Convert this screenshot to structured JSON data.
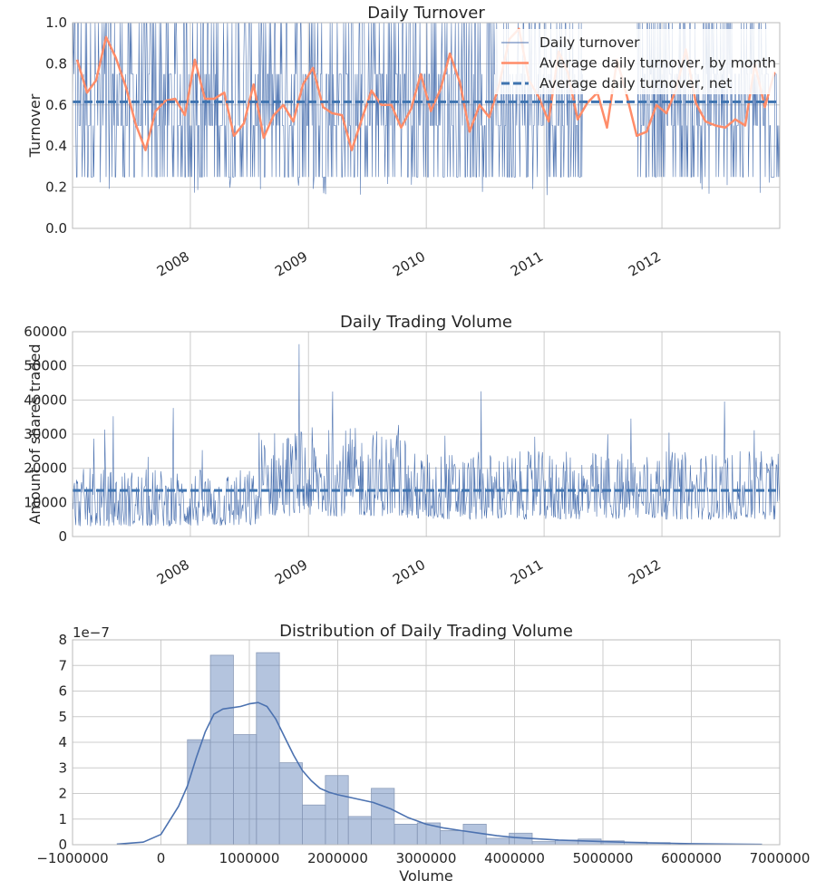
{
  "chart_data": [
    {
      "type": "line",
      "title": "Daily Turnover",
      "xlabel": "",
      "ylabel": "Turnover",
      "xlim": [
        "2007-01-01",
        "2012-12-31"
      ],
      "ylim": [
        0,
        1.0
      ],
      "x_ticks": [
        "2008",
        "2009",
        "2010",
        "2011",
        "2012"
      ],
      "y_ticks": [
        "0.0",
        "0.2",
        "0.4",
        "0.6",
        "0.8",
        "1.0"
      ],
      "grid": true,
      "legend_position": "top-right",
      "series": [
        {
          "name": "Daily turnover",
          "kind": "daily",
          "color": "#4c72b0",
          "value_range": [
            0.16,
            1.0
          ],
          "typical_levels": [
            0.25,
            0.5,
            0.75,
            1.0
          ],
          "gap": [
            "2011-05-01",
            "2011-10-15"
          ]
        },
        {
          "name": "Average daily turnover, by month",
          "kind": "monthly",
          "color": "#ff8c69",
          "x": [
            "2007-01-15",
            "2007-02-15",
            "2007-03-15",
            "2007-04-15",
            "2007-05-15",
            "2007-06-15",
            "2007-07-15",
            "2007-08-15",
            "2007-09-15",
            "2007-10-15",
            "2007-11-15",
            "2007-12-15",
            "2008-01-15",
            "2008-02-15",
            "2008-03-15",
            "2008-04-15",
            "2008-05-15",
            "2008-06-15",
            "2008-07-15",
            "2008-08-15",
            "2008-09-15",
            "2008-10-15",
            "2008-11-15",
            "2008-12-15",
            "2009-01-15",
            "2009-02-15",
            "2009-03-15",
            "2009-04-15",
            "2009-05-15",
            "2009-06-15",
            "2009-07-15",
            "2009-08-15",
            "2009-09-15",
            "2009-10-15",
            "2009-11-15",
            "2009-12-15",
            "2010-01-15",
            "2010-02-15",
            "2010-03-15",
            "2010-04-15",
            "2010-05-15",
            "2010-06-15",
            "2010-07-15",
            "2010-08-15",
            "2010-09-15",
            "2010-10-15",
            "2010-11-15",
            "2010-12-15",
            "2011-01-15",
            "2011-02-15",
            "2011-03-15",
            "2011-04-15",
            "2011-05-15",
            "2011-06-15",
            "2011-07-15",
            "2011-08-15",
            "2011-09-15",
            "2011-10-15",
            "2011-11-15",
            "2011-12-15",
            "2012-01-15",
            "2012-02-15",
            "2012-03-15",
            "2012-04-15",
            "2012-05-15",
            "2012-06-15",
            "2012-07-15",
            "2012-08-15",
            "2012-09-15",
            "2012-10-15",
            "2012-11-15",
            "2012-12-15"
          ],
          "values": [
            0.82,
            0.66,
            0.72,
            0.93,
            0.83,
            0.69,
            0.51,
            0.38,
            0.57,
            0.62,
            0.63,
            0.55,
            0.82,
            0.63,
            0.63,
            0.66,
            0.45,
            0.51,
            0.7,
            0.44,
            0.55,
            0.6,
            0.52,
            0.7,
            0.78,
            0.59,
            0.56,
            0.55,
            0.38,
            0.53,
            0.67,
            0.6,
            0.6,
            0.49,
            0.58,
            0.75,
            0.57,
            0.68,
            0.85,
            0.71,
            0.47,
            0.6,
            0.54,
            0.7,
            0.92,
            0.97,
            0.72,
            0.64,
            0.52,
            0.86,
            0.76,
            0.53,
            0.61,
            0.66,
            0.49,
            0.82,
            0.64,
            0.45,
            0.47,
            0.6,
            0.56,
            0.68,
            0.87,
            0.61,
            0.52,
            0.5,
            0.49,
            0.53,
            0.5,
            0.8,
            0.59,
            0.76
          ]
        },
        {
          "name": "Average daily turnover, net",
          "kind": "hline",
          "color": "#3f74b0",
          "value": 0.615
        }
      ]
    },
    {
      "type": "line",
      "title": "Daily Trading Volume",
      "xlabel": "",
      "ylabel": "Amount of shares traded",
      "xlim": [
        "2007-01-01",
        "2012-12-31"
      ],
      "ylim": [
        0,
        60000
      ],
      "x_ticks": [
        "2008",
        "2009",
        "2010",
        "2011",
        "2012"
      ],
      "y_ticks": [
        "0",
        "10000",
        "20000",
        "30000",
        "40000",
        "50000",
        "60000"
      ],
      "grid": true,
      "series": [
        {
          "kind": "daily",
          "color": "#4c72b0",
          "value_range": [
            3000,
            57000
          ],
          "regimes": [
            {
              "from": "2007-01-01",
              "to": "2008-07-31",
              "typical": [
                3000,
                20000
              ],
              "peak": 41000
            },
            {
              "from": "2008-08-01",
              "to": "2009-10-31",
              "typical": [
                6000,
                32000
              ],
              "peak": 57000
            },
            {
              "from": "2009-11-01",
              "to": "2012-12-31",
              "typical": [
                5000,
                25000
              ],
              "peak": 51000
            }
          ]
        },
        {
          "kind": "hline",
          "color": "#3f74b0",
          "value": 13500
        }
      ]
    },
    {
      "type": "bar",
      "title": "Distribution of Daily Trading Volume",
      "xlabel": "Volume",
      "ylabel": "",
      "y_scale_label": "1e−7",
      "xlim": [
        -1000000,
        7000000
      ],
      "ylim": [
        0,
        8
      ],
      "x_ticks": [
        "−1000000",
        "0",
        "1000000",
        "2000000",
        "3000000",
        "4000000",
        "5000000",
        "6000000",
        "7000000"
      ],
      "y_ticks": [
        "0",
        "1",
        "2",
        "3",
        "4",
        "5",
        "6",
        "7",
        "8"
      ],
      "grid": true,
      "bar_color": "#4c72b0",
      "bins": [
        {
          "start": 300000,
          "end": 560000,
          "density": 4.1
        },
        {
          "start": 560000,
          "end": 820000,
          "density": 7.4
        },
        {
          "start": 820000,
          "end": 1080000,
          "density": 4.3
        },
        {
          "start": 1080000,
          "end": 1340000,
          "density": 7.5
        },
        {
          "start": 1340000,
          "end": 1600000,
          "density": 3.2
        },
        {
          "start": 1600000,
          "end": 1860000,
          "density": 1.55
        },
        {
          "start": 1860000,
          "end": 2120000,
          "density": 2.7
        },
        {
          "start": 2120000,
          "end": 2380000,
          "density": 1.1
        },
        {
          "start": 2380000,
          "end": 2640000,
          "density": 2.2
        },
        {
          "start": 2640000,
          "end": 2900000,
          "density": 0.8
        },
        {
          "start": 2900000,
          "end": 3160000,
          "density": 0.85
        },
        {
          "start": 3160000,
          "end": 3420000,
          "density": 0.55
        },
        {
          "start": 3420000,
          "end": 3680000,
          "density": 0.8
        },
        {
          "start": 3680000,
          "end": 3940000,
          "density": 0.25
        },
        {
          "start": 3940000,
          "end": 4200000,
          "density": 0.45
        },
        {
          "start": 4200000,
          "end": 4460000,
          "density": 0.12
        },
        {
          "start": 4460000,
          "end": 4720000,
          "density": 0.18
        },
        {
          "start": 4720000,
          "end": 4980000,
          "density": 0.22
        },
        {
          "start": 4980000,
          "end": 5240000,
          "density": 0.15
        },
        {
          "start": 5240000,
          "end": 5500000,
          "density": 0.1
        },
        {
          "start": 5500000,
          "end": 5760000,
          "density": 0.08
        }
      ],
      "kde": {
        "color": "#4c72b0",
        "x": [
          -500000,
          -200000,
          0,
          200000,
          300000,
          400000,
          500000,
          600000,
          700000,
          800000,
          900000,
          1000000,
          1100000,
          1200000,
          1300000,
          1400000,
          1500000,
          1600000,
          1700000,
          1800000,
          1900000,
          2000000,
          2200000,
          2400000,
          2600000,
          2800000,
          3000000,
          3200000,
          3400000,
          3600000,
          3800000,
          4000000,
          4500000,
          5000000,
          5500000,
          6000000,
          6500000,
          6800000
        ],
        "y": [
          0.02,
          0.1,
          0.4,
          1.5,
          2.3,
          3.4,
          4.4,
          5.1,
          5.3,
          5.35,
          5.4,
          5.5,
          5.55,
          5.4,
          4.9,
          4.2,
          3.5,
          2.9,
          2.5,
          2.2,
          2.05,
          1.95,
          1.8,
          1.65,
          1.4,
          1.05,
          0.8,
          0.65,
          0.55,
          0.45,
          0.35,
          0.28,
          0.18,
          0.12,
          0.07,
          0.04,
          0.02,
          0.01
        ]
      }
    }
  ]
}
